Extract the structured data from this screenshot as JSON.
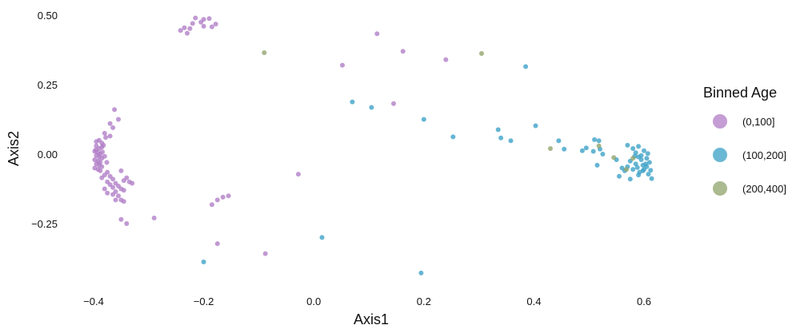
{
  "chart_data": {
    "type": "scatter",
    "title": "",
    "xlabel": "Axis1",
    "ylabel": "Axis2",
    "xlim": [
      -0.44,
      0.63
    ],
    "ylim": [
      -0.45,
      0.51
    ],
    "x_ticks": [
      -0.4,
      -0.2,
      0.0,
      0.2,
      0.4,
      0.6
    ],
    "x_tick_labels": [
      "−0.4",
      "−0.2",
      "0.0",
      "0.2",
      "0.4",
      "0.6"
    ],
    "y_ticks": [
      0.5,
      0.25,
      0.0,
      -0.25
    ],
    "y_tick_labels": [
      "0.50",
      "0.25",
      "0.00",
      "−0.25"
    ],
    "grid": false,
    "legend": {
      "title": "Binned Age",
      "position": "right",
      "entries": [
        "(0,100]",
        "(100,200]",
        "(200,400]"
      ]
    },
    "series": [
      {
        "name": "(0,100]",
        "color": "#b07cc6",
        "points": [
          [
            -0.215,
            0.49
          ],
          [
            -0.2,
            0.485
          ],
          [
            -0.205,
            0.475
          ],
          [
            -0.19,
            0.488
          ],
          [
            -0.235,
            0.455
          ],
          [
            -0.225,
            0.452
          ],
          [
            -0.242,
            0.445
          ],
          [
            -0.23,
            0.435
          ],
          [
            -0.2,
            0.46
          ],
          [
            -0.185,
            0.458
          ],
          [
            -0.22,
            0.47
          ],
          [
            -0.178,
            0.468
          ],
          [
            0.115,
            0.433
          ],
          [
            0.162,
            0.37
          ],
          [
            0.24,
            0.34
          ],
          [
            0.052,
            0.32
          ],
          [
            0.145,
            0.182
          ],
          [
            -0.362,
            0.16
          ],
          [
            -0.355,
            0.125
          ],
          [
            -0.37,
            0.11
          ],
          [
            -0.365,
            0.095
          ],
          [
            -0.38,
            0.075
          ],
          [
            -0.378,
            0.06
          ],
          [
            -0.37,
            0.065
          ],
          [
            -0.395,
            0.045
          ],
          [
            -0.39,
            0.05
          ],
          [
            -0.385,
            0.04
          ],
          [
            -0.395,
            0.03
          ],
          [
            -0.39,
            0.02
          ],
          [
            -0.385,
            0.025
          ],
          [
            -0.398,
            0.01
          ],
          [
            -0.392,
            0.005
          ],
          [
            -0.388,
            0.0
          ],
          [
            -0.395,
            -0.005
          ],
          [
            -0.39,
            -0.01
          ],
          [
            -0.385,
            -0.015
          ],
          [
            -0.398,
            -0.02
          ],
          [
            -0.392,
            -0.025
          ],
          [
            -0.388,
            -0.03
          ],
          [
            -0.395,
            -0.035
          ],
          [
            -0.39,
            -0.04
          ],
          [
            -0.385,
            -0.045
          ],
          [
            -0.398,
            -0.05
          ],
          [
            -0.392,
            -0.055
          ],
          [
            -0.388,
            -0.06
          ],
          [
            -0.396,
            0.015
          ],
          [
            -0.384,
            0.008
          ],
          [
            -0.38,
            -0.008
          ],
          [
            -0.382,
            0.032
          ],
          [
            -0.376,
            -0.03
          ],
          [
            -0.375,
            -0.065
          ],
          [
            -0.38,
            -0.075
          ],
          [
            -0.37,
            -0.08
          ],
          [
            -0.385,
            -0.085
          ],
          [
            -0.365,
            -0.09
          ],
          [
            -0.375,
            -0.1
          ],
          [
            -0.36,
            -0.105
          ],
          [
            -0.37,
            -0.11
          ],
          [
            -0.355,
            -0.115
          ],
          [
            -0.365,
            -0.12
          ],
          [
            -0.35,
            -0.125
          ],
          [
            -0.345,
            -0.13
          ],
          [
            -0.36,
            -0.135
          ],
          [
            -0.375,
            -0.14
          ],
          [
            -0.365,
            -0.145
          ],
          [
            -0.355,
            -0.15
          ],
          [
            -0.35,
            -0.06
          ],
          [
            -0.34,
            -0.085
          ],
          [
            -0.335,
            -0.1
          ],
          [
            -0.345,
            -0.095
          ],
          [
            -0.33,
            -0.105
          ],
          [
            -0.35,
            -0.165
          ],
          [
            -0.345,
            -0.17
          ],
          [
            -0.36,
            -0.165
          ],
          [
            -0.38,
            -0.125
          ],
          [
            -0.35,
            -0.235
          ],
          [
            -0.34,
            -0.25
          ],
          [
            -0.29,
            -0.23
          ],
          [
            -0.155,
            -0.15
          ],
          [
            -0.165,
            -0.155
          ],
          [
            -0.175,
            -0.165
          ],
          [
            -0.185,
            -0.182
          ],
          [
            -0.028,
            -0.072
          ],
          [
            -0.175,
            -0.322
          ],
          [
            -0.088,
            -0.358
          ]
        ]
      },
      {
        "name": "(100,200]",
        "color": "#3aa0c6",
        "points": [
          [
            0.385,
            0.315
          ],
          [
            0.07,
            0.188
          ],
          [
            0.105,
            0.168
          ],
          [
            0.2,
            0.125
          ],
          [
            0.253,
            0.062
          ],
          [
            0.335,
            0.088
          ],
          [
            0.34,
            0.058
          ],
          [
            0.358,
            0.048
          ],
          [
            0.403,
            0.102
          ],
          [
            0.445,
            0.048
          ],
          [
            0.455,
            0.018
          ],
          [
            0.488,
            0.012
          ],
          [
            0.495,
            0.022
          ],
          [
            0.51,
            0.052
          ],
          [
            0.518,
            0.048
          ],
          [
            0.525,
            0.0
          ],
          [
            0.52,
            0.018
          ],
          [
            0.508,
            0.01
          ],
          [
            0.515,
            -0.04
          ],
          [
            0.55,
            -0.02
          ],
          [
            0.56,
            -0.05
          ],
          [
            0.555,
            -0.08
          ],
          [
            0.565,
            -0.06
          ],
          [
            0.575,
            -0.09
          ],
          [
            0.57,
            0.032
          ],
          [
            0.58,
            0.02
          ],
          [
            0.585,
            0.005
          ],
          [
            0.59,
            0.028
          ],
          [
            0.595,
            -0.005
          ],
          [
            0.6,
            0.012
          ],
          [
            0.605,
            -0.015
          ],
          [
            0.61,
            -0.03
          ],
          [
            0.605,
            -0.045
          ],
          [
            0.598,
            -0.06
          ],
          [
            0.59,
            -0.075
          ],
          [
            0.58,
            -0.055
          ],
          [
            0.585,
            -0.035
          ],
          [
            0.575,
            -0.025
          ],
          [
            0.57,
            -0.045
          ],
          [
            0.6,
            -0.055
          ],
          [
            0.608,
            -0.072
          ],
          [
            0.612,
            -0.058
          ],
          [
            0.603,
            -0.035
          ],
          [
            0.595,
            -0.02
          ],
          [
            0.588,
            -0.048
          ],
          [
            0.59,
            -0.01
          ],
          [
            0.614,
            -0.088
          ],
          [
            0.598,
            -0.04
          ],
          [
            0.592,
            -0.065
          ],
          [
            0.583,
            -0.008
          ],
          [
            0.607,
            0.002
          ],
          [
            0.015,
            -0.3
          ],
          [
            -0.2,
            -0.388
          ],
          [
            0.195,
            -0.428
          ]
        ]
      },
      {
        "name": "(200,400]",
        "color": "#8fa36a",
        "points": [
          [
            -0.09,
            0.365
          ],
          [
            0.305,
            0.362
          ],
          [
            0.43,
            0.02
          ],
          [
            0.518,
            0.03
          ],
          [
            0.545,
            -0.012
          ],
          [
            0.568,
            -0.055
          ],
          [
            0.58,
            -0.015
          ]
        ]
      }
    ]
  }
}
